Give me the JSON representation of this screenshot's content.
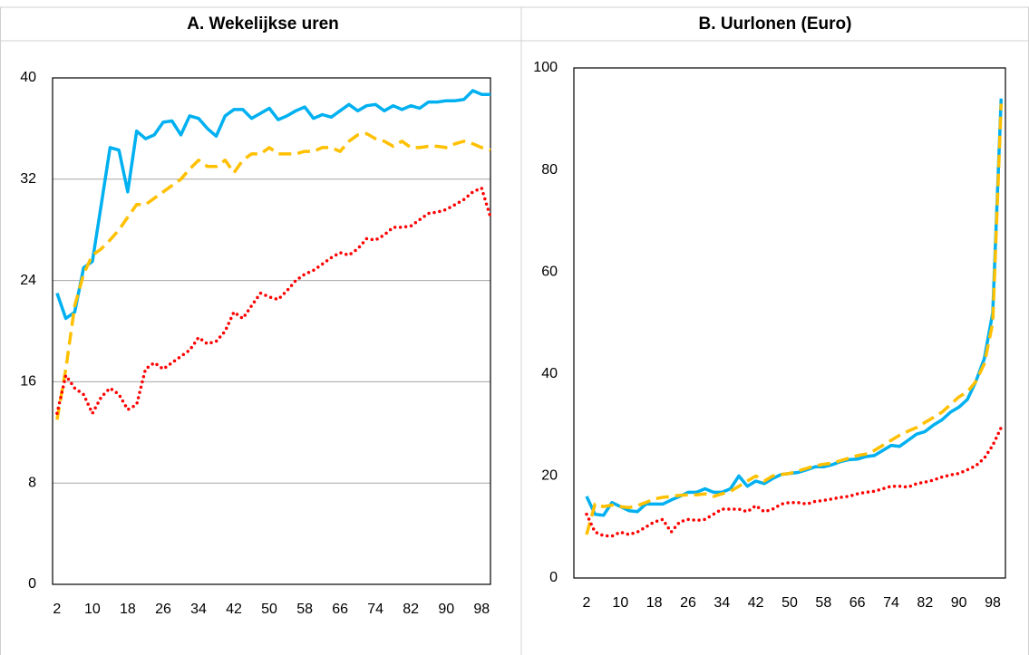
{
  "chart_data": [
    {
      "type": "line",
      "title": "A.   Wekelijkse uren",
      "x": [
        2,
        4,
        6,
        8,
        10,
        12,
        14,
        16,
        18,
        20,
        22,
        24,
        26,
        28,
        30,
        32,
        34,
        36,
        38,
        40,
        42,
        44,
        46,
        48,
        50,
        52,
        54,
        56,
        58,
        60,
        62,
        64,
        66,
        68,
        70,
        72,
        74,
        76,
        78,
        80,
        82,
        84,
        86,
        88,
        90,
        92,
        94,
        96,
        98,
        100
      ],
      "xlim": [
        1,
        100
      ],
      "xticks": [
        2,
        10,
        18,
        26,
        34,
        42,
        50,
        58,
        66,
        74,
        82,
        90,
        98
      ],
      "ylim": [
        0,
        40
      ],
      "yticks": [
        0,
        8,
        16,
        24,
        32,
        40
      ],
      "grid": true,
      "series": [
        {
          "color": "#00b0f0",
          "dash": "solid",
          "values": [
            23,
            21,
            21.5,
            25,
            25.5,
            30,
            34.5,
            34.3,
            31,
            35.8,
            35.2,
            35.5,
            36.5,
            36.6,
            35.5,
            37,
            36.8,
            36,
            35.4,
            37,
            37.5,
            37.5,
            36.8,
            37.2,
            37.6,
            36.7,
            37,
            37.4,
            37.7,
            36.8,
            37.1,
            36.9,
            37.4,
            37.9,
            37.4,
            37.8,
            37.9,
            37.4,
            37.8,
            37.5,
            37.8,
            37.6,
            38.1,
            38.1,
            38.2,
            38.2,
            38.3,
            39,
            38.7,
            38.7
          ]
        },
        {
          "color": "#ffc000",
          "dash": "dashed",
          "values": [
            13,
            17,
            22,
            24.5,
            26,
            26.5,
            27.2,
            28,
            29,
            30,
            30,
            30.5,
            31,
            31.5,
            32,
            32.8,
            33.5,
            33,
            33,
            33.5,
            32.5,
            33.5,
            34,
            34,
            34.5,
            34,
            34,
            34,
            34.2,
            34.2,
            34.5,
            34.5,
            34.2,
            35,
            35.5,
            35.6,
            35.2,
            35,
            34.6,
            35,
            34.5,
            34.5,
            34.6,
            34.6,
            34.5,
            34.8,
            35,
            34.8,
            34.5,
            34.3
          ]
        },
        {
          "color": "#ff0000",
          "dash": "dotted",
          "values": [
            13.5,
            16.5,
            15.5,
            15,
            13.5,
            14.8,
            15.5,
            15,
            13.8,
            14.2,
            17,
            17.5,
            17,
            17.5,
            18,
            18.5,
            19.5,
            19,
            19.2,
            20,
            21.5,
            21,
            22,
            23,
            22.7,
            22.5,
            23.2,
            24,
            24.5,
            24.8,
            25.3,
            25.8,
            26.2,
            26,
            26.5,
            27.3,
            27.2,
            27.6,
            28.2,
            28.2,
            28.3,
            28.8,
            29.3,
            29.4,
            29.6,
            30,
            30.4,
            31,
            31.3,
            29
          ]
        }
      ]
    },
    {
      "type": "line",
      "title": "B.   Uurlonen (Euro)",
      "x": [
        2,
        4,
        6,
        8,
        10,
        12,
        14,
        16,
        18,
        20,
        22,
        24,
        26,
        28,
        30,
        32,
        34,
        36,
        38,
        40,
        42,
        44,
        46,
        48,
        50,
        52,
        54,
        56,
        58,
        60,
        62,
        64,
        66,
        68,
        70,
        72,
        74,
        76,
        78,
        80,
        82,
        84,
        86,
        88,
        90,
        92,
        94,
        96,
        98,
        100
      ],
      "xlim": [
        -1,
        101
      ],
      "xticks": [
        2,
        10,
        18,
        26,
        34,
        42,
        50,
        58,
        66,
        74,
        82,
        90,
        98
      ],
      "ylim": [
        0,
        100
      ],
      "yticks": [
        0,
        20,
        40,
        60,
        80,
        100
      ],
      "grid": false,
      "series": [
        {
          "color": "#00b0f0",
          "dash": "solid",
          "values": [
            16,
            12.5,
            12.3,
            14.8,
            14,
            13.2,
            13,
            14.5,
            14.5,
            14.5,
            15.3,
            16,
            16.8,
            16.8,
            17.5,
            16.8,
            16.8,
            17.5,
            20,
            18,
            19,
            18.5,
            19.5,
            20.3,
            20.5,
            20.7,
            21.2,
            21.8,
            21.8,
            22.2,
            22.8,
            23.2,
            23.3,
            23.8,
            24,
            25,
            26,
            25.8,
            27,
            28.2,
            28.7,
            30,
            31,
            32.5,
            33.5,
            35,
            38.5,
            43,
            52,
            94
          ]
        },
        {
          "color": "#ffc000",
          "dash": "dashed",
          "values": [
            8.5,
            14.5,
            14,
            14.3,
            14,
            13.8,
            14.2,
            14.8,
            15.5,
            15.8,
            16,
            16.2,
            16.3,
            16.3,
            16.5,
            16,
            16.5,
            17,
            18,
            19,
            20,
            19,
            20,
            20.3,
            20.5,
            21,
            21.5,
            22,
            22.3,
            22.5,
            23,
            23.5,
            24,
            24.3,
            25,
            26,
            27,
            28,
            28.8,
            29.5,
            30.5,
            31.5,
            32.5,
            34,
            35.5,
            36.5,
            38.5,
            42,
            50,
            93
          ]
        },
        {
          "color": "#ff0000",
          "dash": "dotted",
          "values": [
            12.5,
            9,
            8.3,
            8.2,
            9,
            8.5,
            9,
            10,
            11,
            11.5,
            9,
            11,
            11.5,
            11.3,
            11.5,
            12.5,
            13.5,
            13.5,
            13.5,
            13,
            14.2,
            13,
            13.5,
            14.5,
            14.8,
            14.8,
            14.5,
            15,
            15.2,
            15.5,
            15.8,
            16,
            16.5,
            16.8,
            17,
            17.5,
            18,
            18,
            17.8,
            18.5,
            18.8,
            19.2,
            19.8,
            20.2,
            20.5,
            21.2,
            22,
            23.5,
            26,
            29.5
          ]
        }
      ]
    }
  ]
}
